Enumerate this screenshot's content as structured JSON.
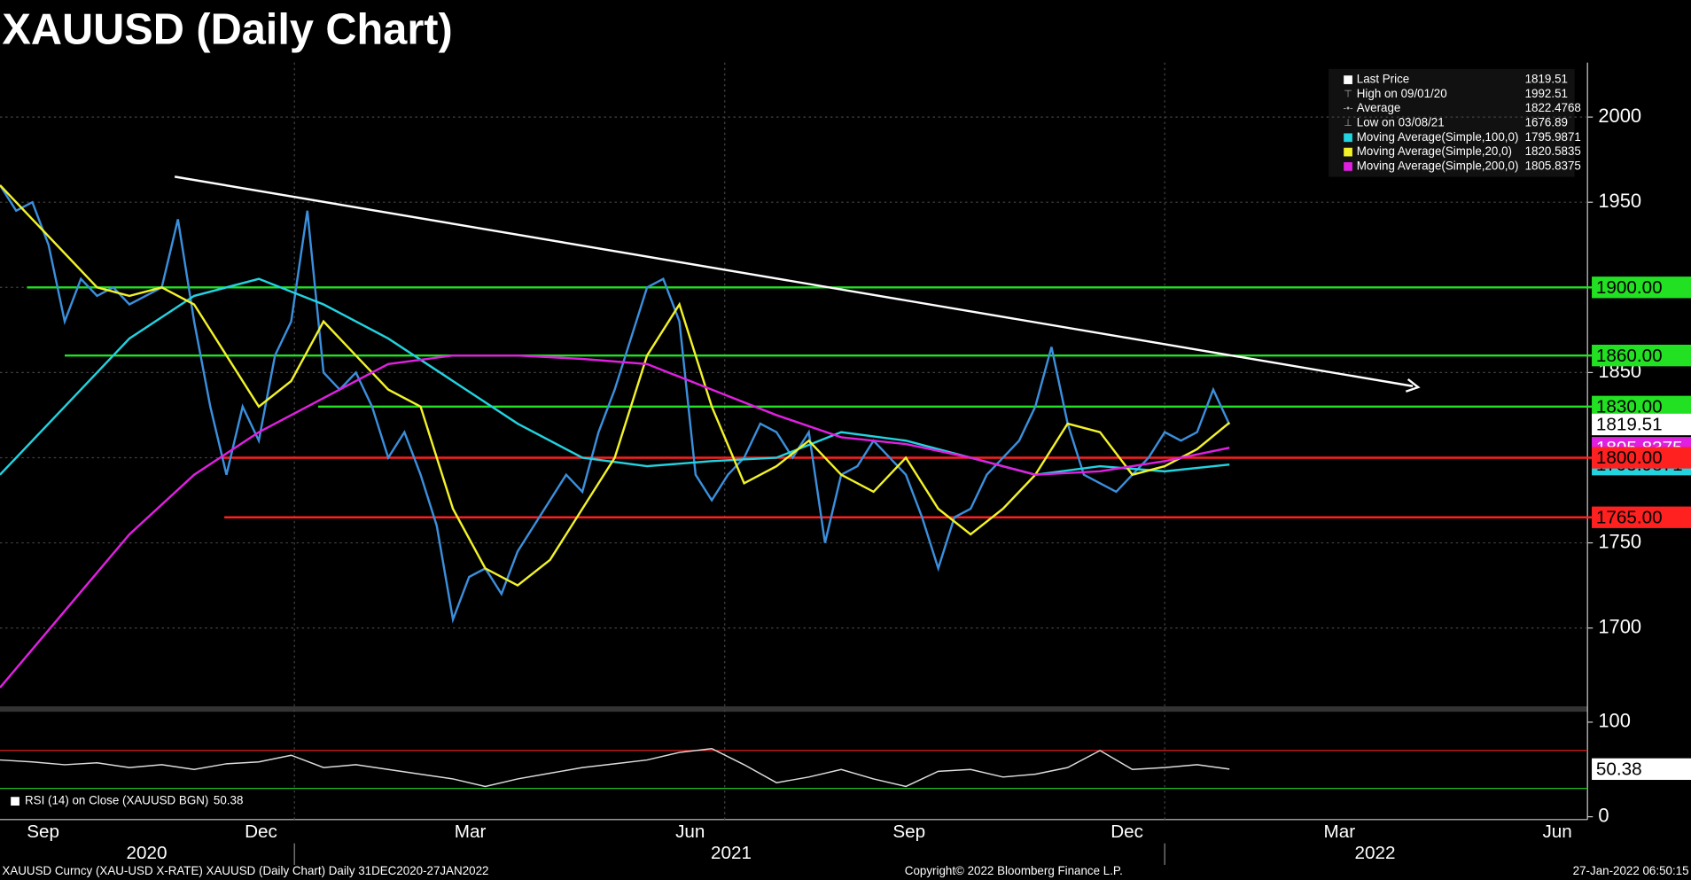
{
  "chart_data": {
    "type": "line",
    "title": "XAUUSD (Daily Chart)",
    "ylim": [
      1654,
      2032
    ],
    "yticks": [
      1700,
      1750,
      1800,
      1850,
      1900,
      1950,
      2000
    ],
    "x_labels": [
      "Sep",
      "Dec",
      "Mar",
      "Jun",
      "Sep",
      "Dec",
      "Mar",
      "Jun"
    ],
    "year_labels": [
      "2020",
      "2021",
      "2022"
    ],
    "series": [
      {
        "name": "Last Price",
        "color": "#3b8fdc",
        "values": [
          1960,
          1945,
          1950,
          1925,
          1880,
          1905,
          1895,
          1900,
          1890,
          1895,
          1900,
          1940,
          1880,
          1830,
          1790,
          1830,
          1810,
          1860,
          1880,
          1945,
          1850,
          1840,
          1850,
          1830,
          1800,
          1815,
          1790,
          1760,
          1705,
          1730,
          1735,
          1720,
          1745,
          1760,
          1775,
          1790,
          1780,
          1815,
          1840,
          1870,
          1900,
          1905,
          1880,
          1790,
          1775,
          1790,
          1800,
          1820,
          1815,
          1800,
          1815,
          1750,
          1790,
          1795,
          1810,
          1800,
          1790,
          1765,
          1735,
          1765,
          1770,
          1790,
          1800,
          1810,
          1830,
          1865,
          1820,
          1790,
          1785,
          1780,
          1790,
          1800,
          1815,
          1810,
          1815,
          1840,
          1819.51
        ]
      },
      {
        "name": "Moving Average(Simple,100,0)",
        "color": "#22d3e0",
        "values": [
          1790,
          1830,
          1870,
          1895,
          1905,
          1890,
          1870,
          1845,
          1820,
          1800,
          1795,
          1798,
          1800,
          1815,
          1810,
          1800,
          1790,
          1795,
          1792,
          1795.9871
        ]
      },
      {
        "name": "Moving Average(Simple,20,0)",
        "color": "#f2f22a",
        "values": [
          1960,
          1940,
          1920,
          1900,
          1895,
          1900,
          1890,
          1860,
          1830,
          1845,
          1880,
          1860,
          1840,
          1830,
          1770,
          1735,
          1725,
          1740,
          1770,
          1800,
          1860,
          1890,
          1830,
          1785,
          1795,
          1810,
          1790,
          1780,
          1800,
          1770,
          1755,
          1770,
          1790,
          1820,
          1815,
          1790,
          1795,
          1805,
          1820.5835
        ]
      },
      {
        "name": "Moving Average(Simple,200,0)",
        "color": "#e020e0",
        "values": [
          1665,
          1710,
          1755,
          1790,
          1815,
          1835,
          1855,
          1860,
          1860,
          1858,
          1855,
          1840,
          1825,
          1812,
          1808,
          1800,
          1790,
          1792,
          1798,
          1805.8375
        ]
      }
    ],
    "legend": [
      {
        "label": "Last Price",
        "value": 1819.51
      },
      {
        "label": "High on 09/01/20",
        "value": 1992.51
      },
      {
        "label": "Average",
        "value": 1822.4768
      },
      {
        "label": "Low on 03/08/21",
        "value": 1676.89
      },
      {
        "label": "Moving Average(Simple,100,0)",
        "value": 1795.9871
      },
      {
        "label": "Moving Average(Simple,20,0)",
        "value": 1820.5835
      },
      {
        "label": "Moving Average(Simple,200,0)",
        "value": 1805.8375
      }
    ],
    "levels": [
      {
        "value": 1900,
        "label": "1900.00",
        "color": "#22e022"
      },
      {
        "value": 1860,
        "label": "1860.00",
        "color": "#22e022"
      },
      {
        "value": 1830,
        "label": "1830.00",
        "color": "#22e022"
      },
      {
        "value": 1800,
        "label": "1800.00",
        "color": "#ff2020"
      },
      {
        "value": 1765,
        "label": "1765.00",
        "color": "#ff2020"
      }
    ],
    "trendline": {
      "values": [
        1965,
        1842
      ],
      "color": "#ffffff"
    },
    "rsi": {
      "label": "RSI (14)  on Close (XAUUSD BGN)",
      "last": 50.38,
      "ylim": [
        -3,
        111
      ],
      "yticks": [
        0,
        100
      ],
      "overbought": 70,
      "oversold": 30,
      "values": [
        60,
        58,
        55,
        57,
        52,
        55,
        50,
        56,
        58,
        65,
        52,
        55,
        50,
        45,
        40,
        32,
        40,
        46,
        52,
        56,
        60,
        68,
        72,
        55,
        36,
        42,
        50,
        40,
        32,
        48,
        50,
        42,
        45,
        52,
        70,
        50,
        52,
        55,
        50.38
      ]
    },
    "footer": [
      "XAUUSD Curncy (XAU-USD X-RATE) XAUUSD (Daily Chart)  Daily 31DEC2020-27JAN2022",
      "Copyright© 2022 Bloomberg Finance L.P.",
      "27-Jan-2022 06:50:15"
    ]
  }
}
